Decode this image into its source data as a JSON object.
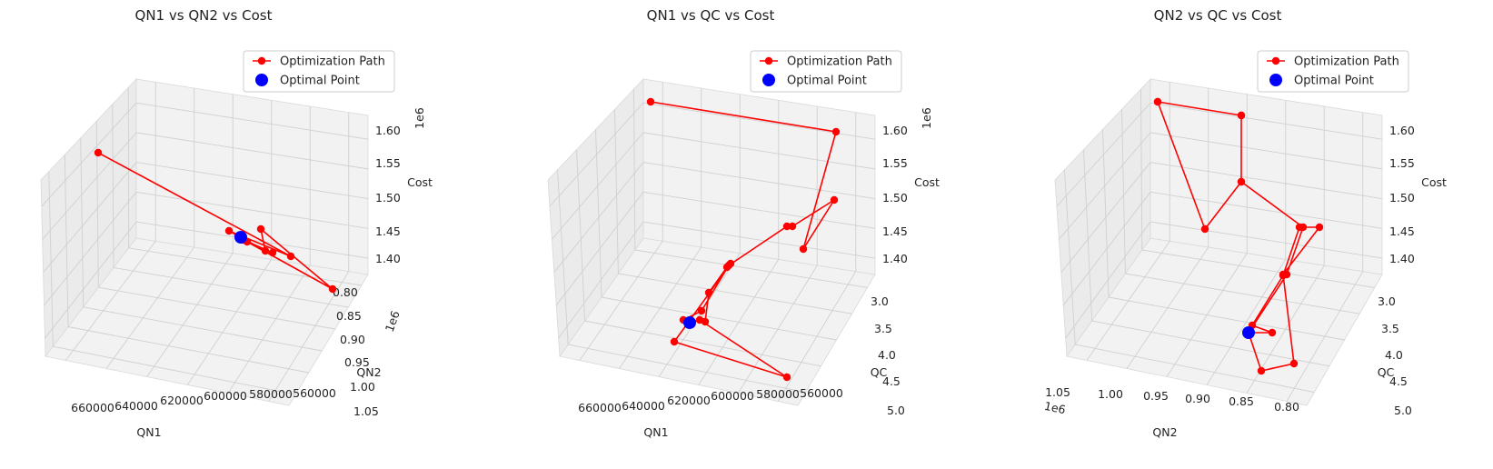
{
  "chart_data": [
    {
      "type": "scatter",
      "projection": "3d",
      "title": "QN1 vs QN2 vs Cost",
      "xlabel": "QN1",
      "ylabel": "QN2",
      "zlabel": "Cost",
      "x_ticks": [
        "660000",
        "640000",
        "620000",
        "600000",
        "580000",
        "560000"
      ],
      "y_ticks": [
        "0.80",
        "0.85",
        "0.90",
        "0.95",
        "1.00",
        "1.05"
      ],
      "y_offset": "1e6",
      "z_ticks": [
        "1.40",
        "1.45",
        "1.50",
        "1.55",
        "1.60"
      ],
      "z_offset": "1e6",
      "legend": [
        "Optimization Path",
        "Optimal Point"
      ],
      "legend_position": "upper-right",
      "path_color": "#ff0000",
      "optimal_color": "#0000ff"
    },
    {
      "type": "scatter",
      "projection": "3d",
      "title": "QN1 vs QC vs Cost",
      "xlabel": "QN1",
      "ylabel": "QC",
      "zlabel": "Cost",
      "x_ticks": [
        "660000",
        "640000",
        "620000",
        "600000",
        "580000",
        "560000"
      ],
      "y_ticks": [
        "3.0",
        "3.5",
        "4.0",
        "4.5",
        "5.0"
      ],
      "z_ticks": [
        "1.40",
        "1.45",
        "1.50",
        "1.55",
        "1.60"
      ],
      "z_offset": "1e6",
      "legend": [
        "Optimization Path",
        "Optimal Point"
      ],
      "legend_position": "upper-right",
      "path_color": "#ff0000",
      "optimal_color": "#0000ff"
    },
    {
      "type": "scatter",
      "projection": "3d",
      "title": "QN2 vs QC vs Cost",
      "xlabel": "QN2",
      "ylabel": "QC",
      "zlabel": "Cost",
      "x_ticks": [
        "1.05",
        "1.00",
        "0.95",
        "0.90",
        "0.85",
        "0.80"
      ],
      "x_offset": "1e6",
      "y_ticks": [
        "3.0",
        "3.5",
        "4.0",
        "4.5",
        "5.0"
      ],
      "z_ticks": [
        "1.40",
        "1.45",
        "1.50",
        "1.55",
        "1.60"
      ],
      "legend": [
        "Optimization Path",
        "Optimal Point"
      ],
      "legend_position": "upper-right",
      "path_color": "#ff0000",
      "optimal_color": "#0000ff"
    }
  ]
}
